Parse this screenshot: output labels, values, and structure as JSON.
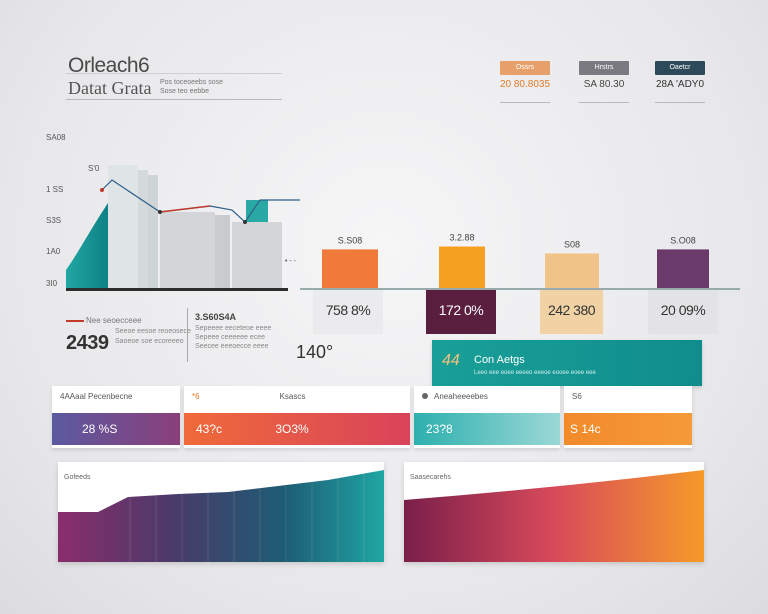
{
  "header": {
    "title_top": "Orleach6",
    "title_bottom": "Datat Grata",
    "note_line1": "Pos toceoeebs sose",
    "note_line2": "Sose teo eebbe"
  },
  "kpis": [
    {
      "tag": "Ossrs",
      "value": "20 80.8035",
      "color": "#e8a06a",
      "value_color": "#e07a2a"
    },
    {
      "tag": "Hrstrs",
      "value": "SA 80.30",
      "color": "#7a7a80",
      "value_color": "#444"
    },
    {
      "tag": "Oaetcr",
      "value": "28A 'ADY0",
      "color": "#2d4a5a",
      "value_color": "#333"
    }
  ],
  "area_chart": {
    "y_ticks": [
      "SA08",
      "1 SS",
      "S3S",
      "1A0",
      "3I0"
    ],
    "peak_label": "S'0"
  },
  "chart_data": {
    "type": "bar",
    "categories": [
      "758 8%",
      "172 0%",
      "242 380",
      "20 09%"
    ],
    "series": [
      {
        "values": [
          3.08,
          3.28,
          2.8,
          3.08
        ]
      }
    ],
    "value_labels": [
      "S.S08",
      "3.2.88",
      "S08",
      "S.O08"
    ],
    "colors": [
      "#ef7a3a",
      "#f5a020",
      "#f0c488",
      "#6a3a6a"
    ],
    "category_box_colors": [
      "#ebebed",
      "#5a1e3e",
      "#f1d2a4",
      "#e3e3e6"
    ],
    "category_text_colors": [
      "#333",
      "#ffffff",
      "#333",
      "#333"
    ],
    "ylim": [
      0,
      4
    ]
  },
  "left_stat": {
    "caption": "Nee seoecceee",
    "value": "2439",
    "desc_line1": "Seeoe eesoe reoeosece",
    "desc_line2": "Saoeoe soe ecoreeeo"
  },
  "mid_stat": {
    "caption": "3.S60S4A",
    "desc_line1": "Sepeeee eeceteoe eeee",
    "desc_line2": "Sepeee ceeeeee ecee",
    "desc_line3": "Seecee eeeoecce eeee",
    "value": "140°"
  },
  "teal_banner": {
    "number": "44",
    "label": "Con Aetgs",
    "sub": "Leeo eee eoee eeeeo eeeoe eooee eoee eee"
  },
  "cards": [
    {
      "label": "4AAaal Pecenbecne",
      "value": "28 %S",
      "value2": ""
    },
    {
      "label": "Ksascs",
      "mark": "*6",
      "value": "43?c",
      "value2": "3O3%"
    },
    {
      "label": "Aneaheeeebes",
      "value": "23?8",
      "value2": ""
    },
    {
      "label": "S6",
      "value": "S 14c",
      "value2": ""
    }
  ],
  "bottom_panels": [
    {
      "label": "Gofeeds"
    },
    {
      "label": "Saasecarehs"
    }
  ]
}
